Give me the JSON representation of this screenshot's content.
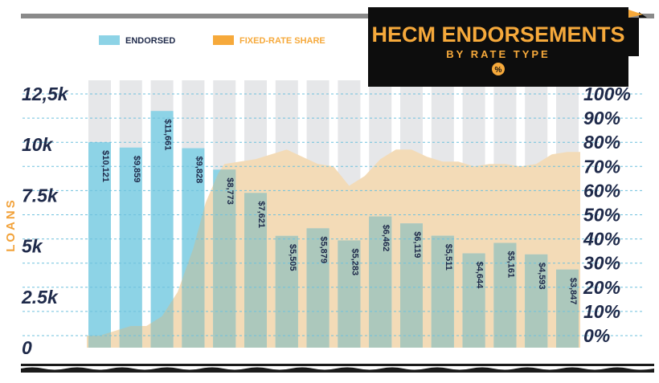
{
  "title": {
    "main": "HECM ENDORSEMENTS",
    "sub": "BY RATE TYPE",
    "badge": "%"
  },
  "legend": {
    "endorsed": "ENDORSED",
    "fixed_rate_share": "FIXED-RATE SHARE"
  },
  "colors": {
    "endorsed": "#8dd3e6",
    "fixed_rate_share": "#f6a93b",
    "fixed_area": "#f3dbb7",
    "overlap_bar": "#acc8bc",
    "column_bg": "#e6e7e9",
    "gridline": "#6fc1dd",
    "navy": "#1f2a4a",
    "title_bg": "#0d0d0d"
  },
  "chart_data": {
    "type": "bar",
    "ylabel": "LOANS",
    "ylim": [
      0,
      12500
    ],
    "y2lim": [
      0,
      100
    ],
    "yticks": [
      "0",
      "2.5k",
      "5k",
      "7.5k",
      "10k",
      "12,5k"
    ],
    "y2ticks": [
      "0%",
      "10%",
      "20%",
      "30%",
      "40%",
      "50%",
      "60%",
      "70%",
      "80%",
      "90%",
      "100%"
    ],
    "grid": true,
    "legend_position": "top-left",
    "series": [
      {
        "name": "ENDORSED",
        "type": "bar",
        "values": [
          10121,
          9859,
          11661,
          9828,
          8773,
          7621,
          5505,
          5879,
          5283,
          6462,
          6119,
          5511,
          4644,
          5161,
          4593,
          3847
        ],
        "labels": [
          "$10,121",
          "$9,859",
          "$11,661",
          "$9,828",
          "$8,773",
          "$7,621",
          "$5,505",
          "$5,879",
          "$5,283",
          "$6,462",
          "$6,119",
          "$5,511",
          "$4,644",
          "$5,161",
          "$4,593",
          "$3,847"
        ]
      },
      {
        "name": "FIXED-RATE SHARE",
        "type": "area",
        "x": [
          0,
          0.5,
          1,
          1.5,
          2,
          2.5,
          3,
          3.4,
          3.8,
          4,
          4.5,
          5,
          5.5,
          6,
          6.5,
          7,
          7.5,
          8,
          8.5,
          9,
          9.5,
          10,
          10.5,
          11,
          11.5,
          12,
          12.5,
          13,
          13.5,
          14,
          14.5,
          15
        ],
        "values": [
          0,
          2,
          4,
          4,
          8,
          18,
          36,
          55,
          67,
          71,
          72,
          73,
          75,
          77,
          74,
          71,
          70,
          62,
          66,
          73,
          77,
          77,
          74,
          72,
          72,
          70,
          71,
          71,
          70,
          71,
          75,
          76
        ]
      }
    ]
  }
}
